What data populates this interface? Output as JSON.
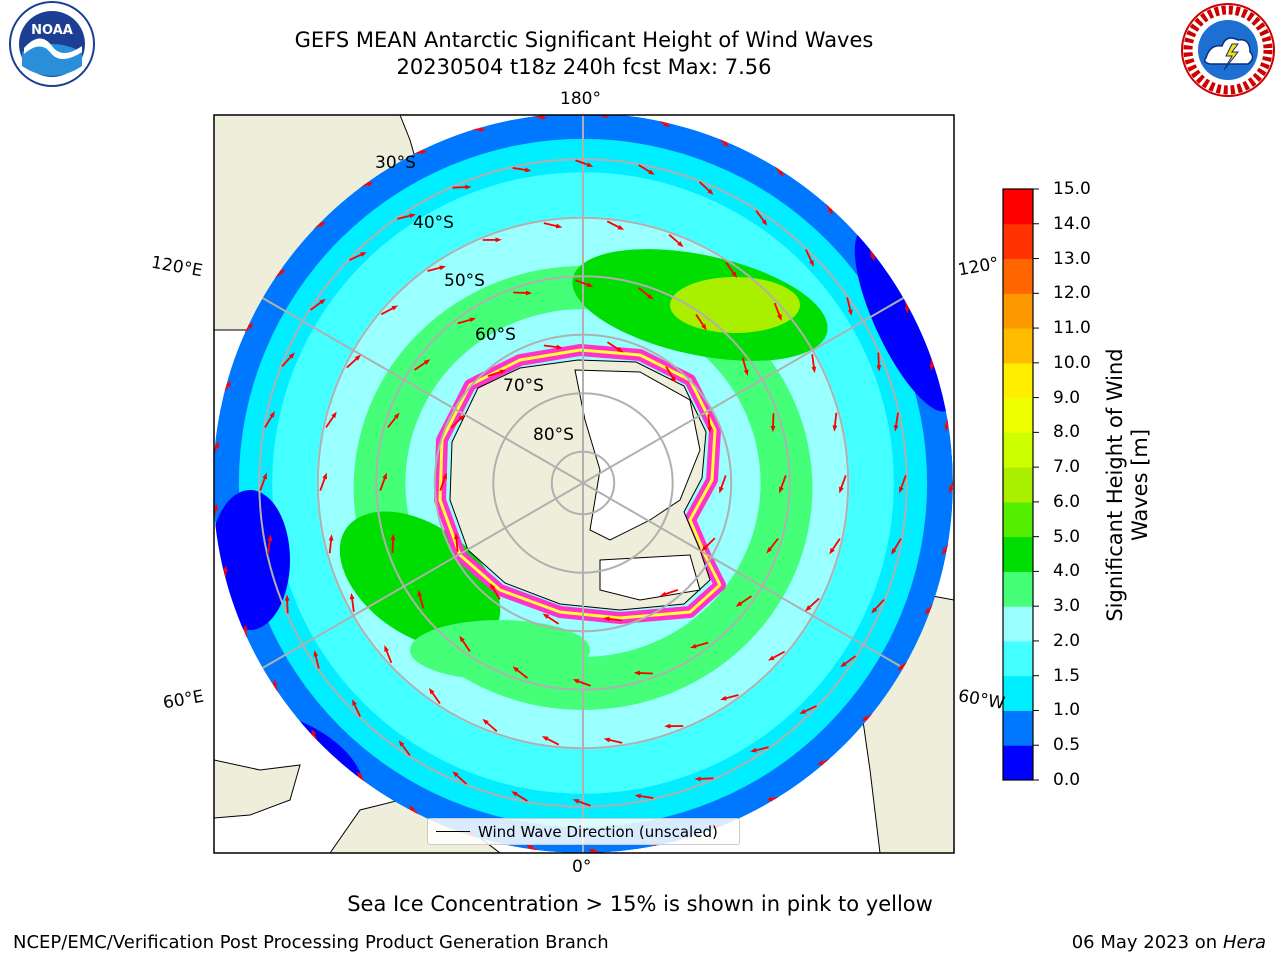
{
  "title": {
    "line1": "GEFS MEAN Antarctic Significant Height of Wind Waves",
    "line2": "20230504 t18z 240h fcst   Max: 7.56"
  },
  "logos": {
    "left": "noaa-logo",
    "left_text": "NOAA",
    "right": "national-weather-service-logo",
    "right_text": "NATIONAL WEATHER SERVICE"
  },
  "map": {
    "projection": "south-polar-stereographic",
    "longitude_labels": {
      "top": "180°",
      "bottom": "0°",
      "upper_left": "120°E",
      "lower_left": "60°E",
      "upper_right": "120°",
      "lower_right": "60°W"
    },
    "latitude_labels": [
      "30°S",
      "40°S",
      "50°S",
      "60°S",
      "70°S",
      "80°S"
    ],
    "colors": {
      "land": "#efeedb",
      "arrow": "#ff0000",
      "ice_pink": "#ff33cc",
      "ice_yellow": "#ffff33",
      "grid": "#b0b0b0"
    },
    "legend_label": "Wind Wave Direction (unscaled)"
  },
  "colorbar": {
    "title": "Significant Height of Wind Waves [m]",
    "title_line1": "Significant Height of Wind",
    "title_line2": "Waves [m]",
    "ticks": [
      "0.0",
      "0.5",
      "1.0",
      "1.5",
      "2.0",
      "3.0",
      "4.0",
      "5.0",
      "6.0",
      "7.0",
      "8.0",
      "9.0",
      "10.0",
      "11.0",
      "12.0",
      "13.0",
      "14.0",
      "15.0"
    ],
    "colors": [
      "#0000ff",
      "#0077ff",
      "#00eeff",
      "#44ffff",
      "#99ffff",
      "#44ff77",
      "#00dd00",
      "#55ee00",
      "#aaee00",
      "#ccff00",
      "#eeff00",
      "#ffee00",
      "#ffbb00",
      "#ff9900",
      "#ff6600",
      "#ff3300",
      "#ff0000"
    ]
  },
  "notes": {
    "ice": "Sea Ice Concentration > 15% is shown in pink to yellow",
    "footer_left": "NCEP/EMC/Verification Post Processing Product Generation Branch",
    "footer_date": "06 May 2023 on",
    "footer_machine": "Hera"
  }
}
